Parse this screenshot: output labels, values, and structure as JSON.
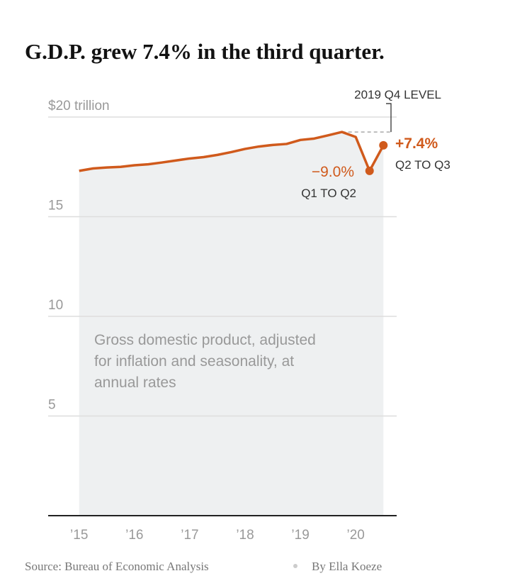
{
  "chart_data": {
    "type": "area-line",
    "title": "G.D.P. grew 7.4% in the third quarter.",
    "note": [
      "Gross domestic product, adjusted",
      "for inflation and seasonality, at",
      "annual rates"
    ],
    "x": [
      2015,
      2015.25,
      2015.5,
      2015.75,
      2016,
      2016.25,
      2016.5,
      2016.75,
      2017,
      2017.25,
      2017.5,
      2017.75,
      2018,
      2018.25,
      2018.5,
      2018.75,
      2019,
      2019.25,
      2019.5,
      2019.75,
      2020,
      2020.25,
      2020.5
    ],
    "values": [
      17.3,
      17.42,
      17.47,
      17.5,
      17.58,
      17.63,
      17.72,
      17.82,
      17.92,
      17.99,
      18.1,
      18.24,
      18.4,
      18.52,
      18.6,
      18.65,
      18.85,
      18.92,
      19.08,
      19.25,
      19.0,
      17.3,
      18.58
    ],
    "color": "#d05a1c",
    "area_color": "#eef0f1",
    "xlim": [
      2014.44,
      2020.74
    ],
    "xticks": [
      {
        "value": 2015,
        "label": "’15"
      },
      {
        "value": 2016,
        "label": "’16"
      },
      {
        "value": 2017,
        "label": "’17"
      },
      {
        "value": 2018,
        "label": "’18"
      },
      {
        "value": 2019,
        "label": "’19"
      },
      {
        "value": 2020,
        "label": "’20"
      }
    ],
    "ylim": [
      0,
      20
    ],
    "yticks": [
      {
        "value": 20,
        "label": "$20 trillion"
      },
      15,
      10,
      5
    ],
    "grid": true,
    "annotations": [
      {
        "text": "2019 Q4 LEVEL"
      },
      {
        "text": "−9.0%"
      },
      {
        "text": "Q1 TO Q2"
      },
      {
        "text": "+7.4%"
      },
      {
        "text": "Q2 TO Q3"
      }
    ],
    "source": "Source: Bureau of Economic Analysis",
    "byline": "By Ella Koeze"
  }
}
